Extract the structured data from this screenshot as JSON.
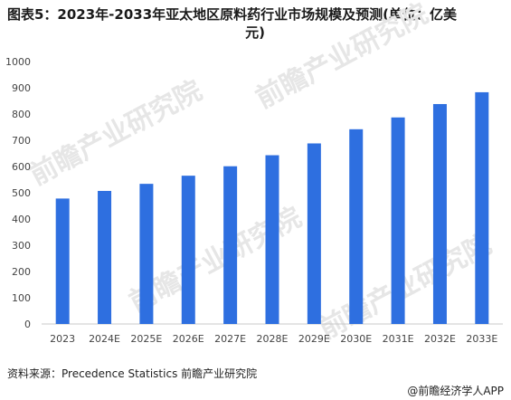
{
  "title_line1": "图表5：2023年-2033年亚太地区原料药行业市场规模及预测(单位：亿美",
  "title_line2": "元)",
  "watermark": "前瞻产业研究院",
  "source": "资料来源：Precedence Statistics 前瞻产业研究院",
  "footer": "@前瞻经济学人APP",
  "bar_color": "#2e6fe0",
  "chart_data": {
    "type": "bar",
    "categories": [
      "2023",
      "2024E",
      "2025E",
      "2026E",
      "2027E",
      "2028E",
      "2029E",
      "2030E",
      "2031E",
      "2032E",
      "2033E"
    ],
    "values": [
      478,
      507,
      534,
      565,
      601,
      643,
      688,
      742,
      787,
      838,
      883
    ],
    "ylim": [
      0,
      1000
    ],
    "yticks": [
      0,
      100,
      200,
      300,
      400,
      500,
      600,
      700,
      800,
      900,
      1000
    ],
    "grid": false,
    "legend": "none"
  }
}
